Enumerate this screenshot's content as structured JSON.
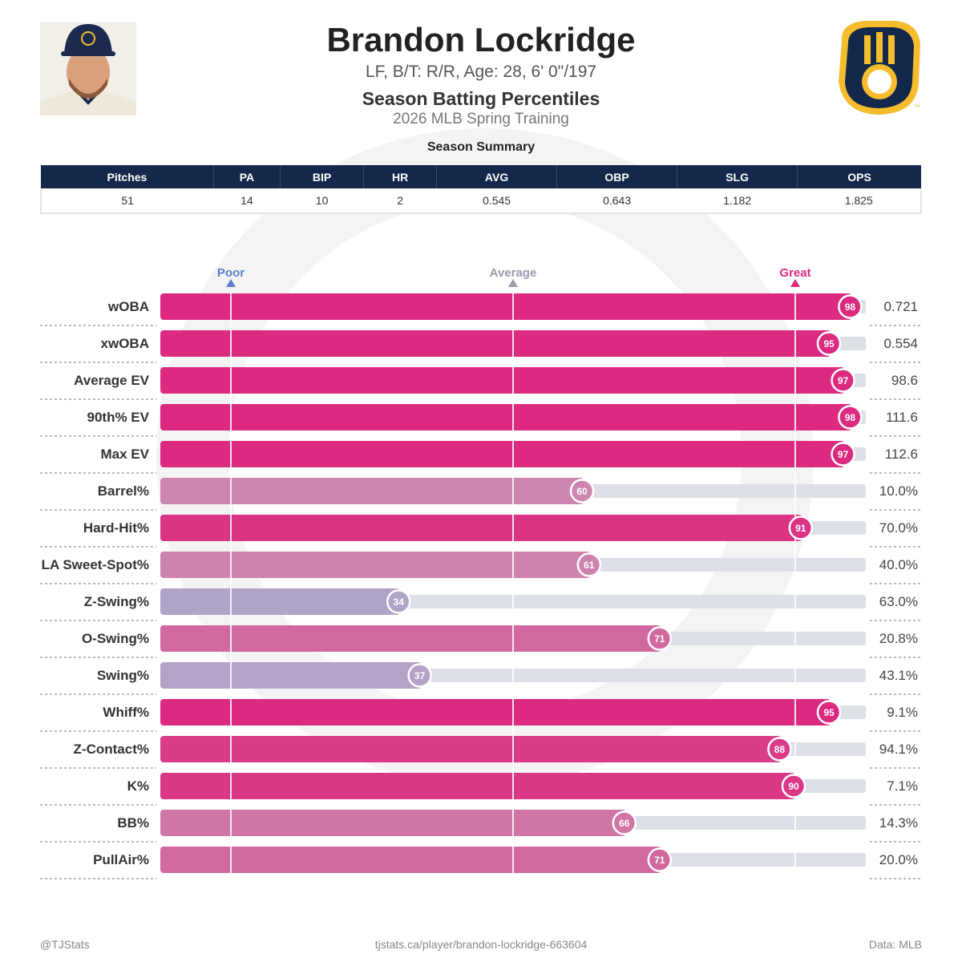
{
  "header": {
    "name": "Brandon Lockridge",
    "bio": "LF, B/T: R/R, Age: 28, 6' 0\"/197",
    "title": "Season Batting Percentiles",
    "subtitle": "2026 MLB Spring Training",
    "logo_text": "™"
  },
  "summary": {
    "title": "Season Summary",
    "headers": [
      "Pitches",
      "PA",
      "BIP",
      "HR",
      "AVG",
      "OBP",
      "SLG",
      "OPS"
    ],
    "values": [
      "51",
      "14",
      "10",
      "2",
      "0.545",
      "0.643",
      "1.182",
      "1.825"
    ]
  },
  "chart_data": {
    "type": "bar",
    "orientation": "horizontal",
    "xlim": [
      0,
      100
    ],
    "markers": [
      {
        "label": "Poor",
        "value": 10,
        "color": "#5b7fc7"
      },
      {
        "label": "Average",
        "value": 50,
        "color": "#999aaa"
      },
      {
        "label": "Great",
        "value": 90,
        "color": "#dc2a80"
      }
    ],
    "categories": [
      "wOBA",
      "xwOBA",
      "Average EV",
      "90th% EV",
      "Max EV",
      "Barrel%",
      "Hard-Hit%",
      "LA Sweet-Spot%",
      "Z-Swing%",
      "O-Swing%",
      "Swing%",
      "Whiff%",
      "Z-Contact%",
      "K%",
      "BB%",
      "PullAir%"
    ],
    "percentiles": [
      98,
      95,
      97,
      98,
      97,
      60,
      91,
      61,
      34,
      71,
      37,
      95,
      88,
      90,
      66,
      71
    ],
    "values": [
      "0.721",
      "0.554",
      "98.6",
      "111.6",
      "112.6",
      "10.0%",
      "70.0%",
      "40.0%",
      "63.0%",
      "20.8%",
      "43.1%",
      "9.1%",
      "94.1%",
      "7.1%",
      "14.3%",
      "20.0%"
    ],
    "colors": {
      "low": "#9aa6d2",
      "mid": "#c8a0bc",
      "high": "#dc2a80",
      "track": "#dde0e7"
    }
  },
  "footer": {
    "left": "@TJStats",
    "center": "tjstats.ca/player/brandon-lockridge-663604",
    "right": "Data: MLB"
  }
}
